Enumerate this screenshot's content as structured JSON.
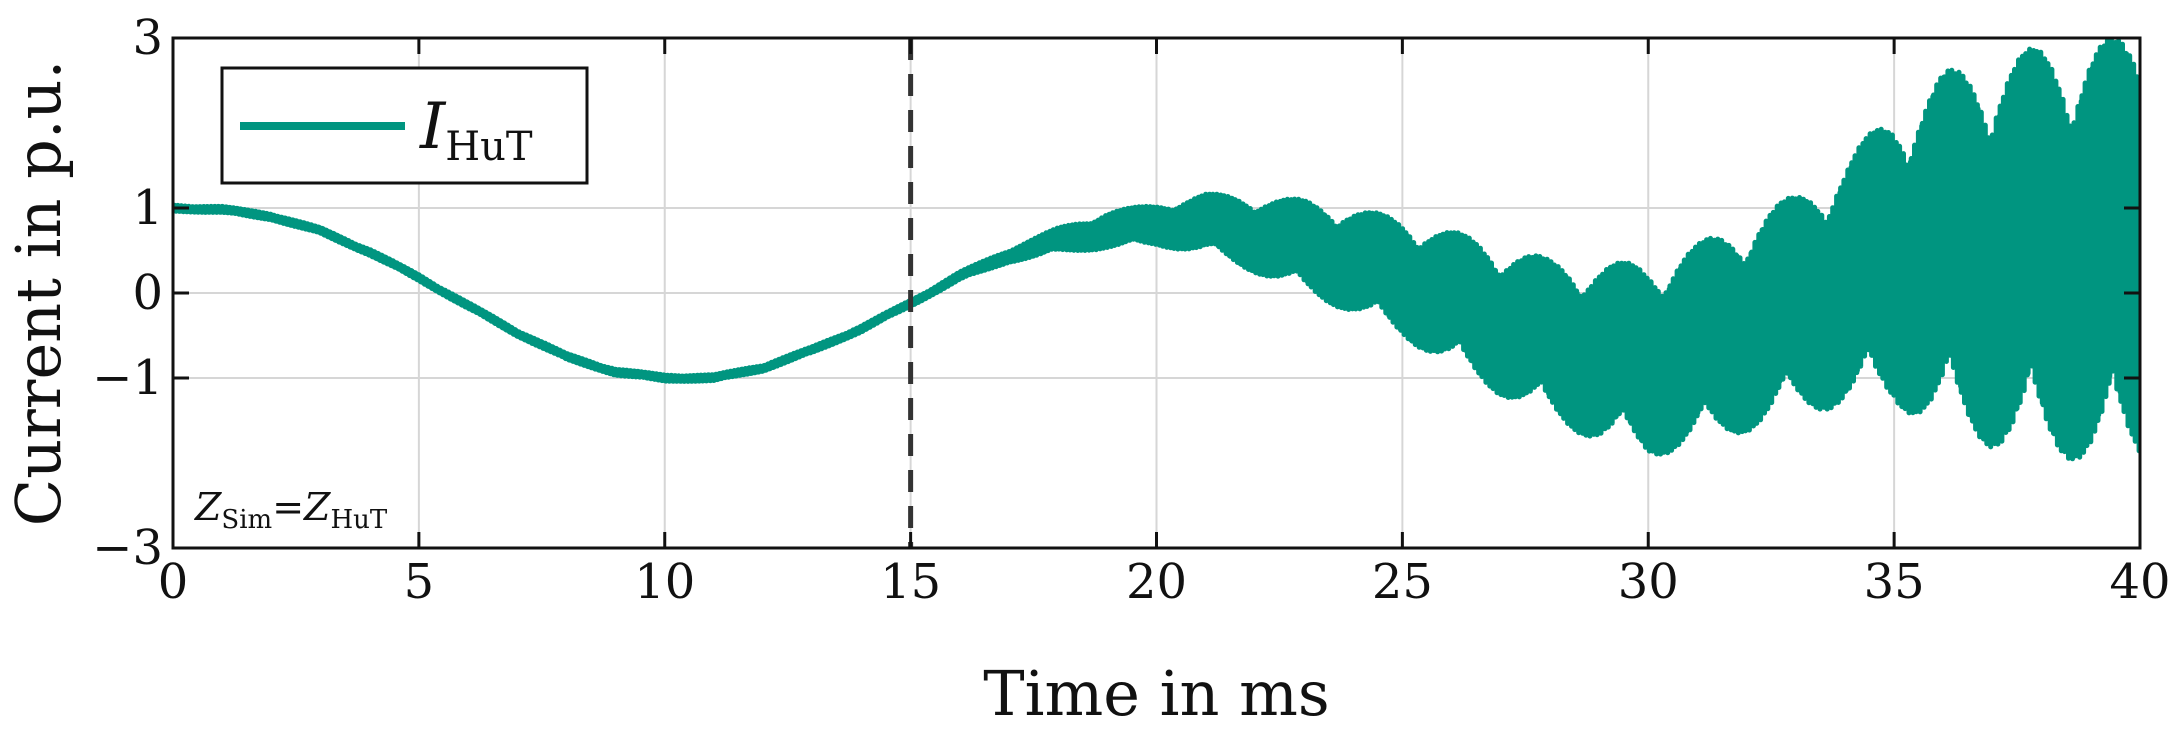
{
  "chart_data": {
    "type": "line",
    "xlabel": "Time in ms",
    "ylabel": "Current in p.u.",
    "xlim": [
      0,
      40
    ],
    "ylim": [
      -3,
      3
    ],
    "x_ticks": [
      0,
      5,
      10,
      15,
      20,
      25,
      30,
      35,
      40
    ],
    "x_tick_labels": [
      "0",
      "5",
      "10",
      "15",
      "20",
      "25",
      "30",
      "35",
      "40"
    ],
    "y_ticks": [
      -3,
      -1,
      0,
      1,
      3
    ],
    "y_tick_labels": [
      "−3",
      "−1",
      "0",
      "1",
      "3"
    ],
    "grid": true,
    "legend_position": "top-left",
    "series": [
      {
        "name": "I",
        "name_subscript": "HuT",
        "color": "#009580",
        "x": [
          0,
          1,
          2,
          3,
          4,
          5,
          6,
          7,
          8,
          9,
          10,
          11,
          12,
          13,
          14,
          15,
          16,
          17,
          18,
          19,
          20,
          21,
          22,
          23,
          24,
          25,
          26,
          27,
          28,
          29,
          30,
          31,
          32,
          33,
          34,
          35,
          36,
          37,
          38,
          39,
          40
        ],
        "y_center": [
          1.0,
          0.98,
          0.9,
          0.73,
          0.48,
          0.18,
          -0.15,
          -0.47,
          -0.75,
          -0.93,
          -1.0,
          -1.0,
          -0.88,
          -0.67,
          -0.42,
          -0.12,
          0.2,
          0.44,
          0.62,
          0.74,
          0.8,
          0.82,
          0.69,
          0.55,
          0.38,
          0.18,
          -0.07,
          -0.32,
          -0.55,
          -0.7,
          -0.78,
          -0.62,
          -0.38,
          -0.14,
          0.12,
          0.42,
          0.5,
          0.48,
          0.5,
          0.5,
          0.5
        ],
        "envelope_half_width": [
          0.04,
          0.04,
          0.04,
          0.04,
          0.04,
          0.04,
          0.04,
          0.04,
          0.04,
          0.04,
          0.04,
          0.04,
          0.04,
          0.04,
          0.04,
          0.04,
          0.05,
          0.08,
          0.15,
          0.22,
          0.25,
          0.35,
          0.45,
          0.55,
          0.62,
          0.7,
          0.8,
          0.88,
          0.95,
          1.05,
          1.15,
          1.2,
          1.25,
          1.3,
          1.45,
          1.75,
          2.1,
          2.3,
          2.4,
          2.5,
          2.5
        ]
      }
    ],
    "vline": {
      "x": 15,
      "style": "dashed",
      "color": "#333333"
    },
    "annotation": {
      "text": "Z",
      "sub1": "Sim",
      "eq": "=",
      "text2": "Z",
      "sub2": "HuT"
    }
  }
}
